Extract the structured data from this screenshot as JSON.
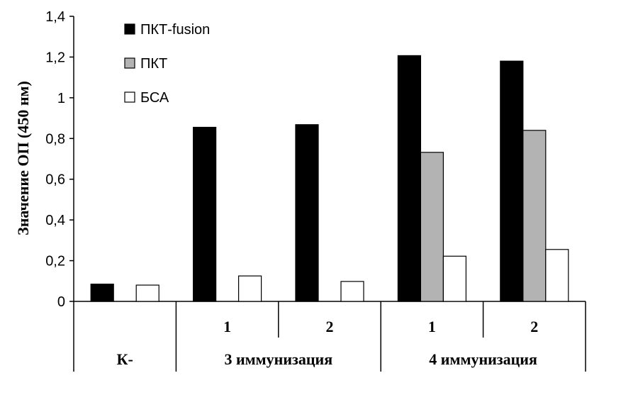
{
  "chart_data": {
    "type": "bar",
    "ylabel": "Значение ОП (450 нм)",
    "ylim": [
      0,
      1.4
    ],
    "yticks": [
      "0",
      "0,2",
      "0,4",
      "0,6",
      "0,8",
      "1",
      "1,2",
      "1,4"
    ],
    "ytick_values": [
      0,
      0.2,
      0.4,
      0.6,
      0.8,
      1.0,
      1.2,
      1.4
    ],
    "legend_placement": "top-left",
    "categories": [
      "К-",
      "3 иммунизация / 1",
      "3 иммунизация / 2",
      "4 иммунизация / 1",
      "4 иммунизация / 2"
    ],
    "sub_labels": [
      "",
      "1",
      "2",
      "1",
      "2"
    ],
    "group_labels": [
      {
        "label": "К-",
        "span": [
          0,
          0
        ]
      },
      {
        "label": "3 иммунизация",
        "span": [
          1,
          2
        ]
      },
      {
        "label": "4 иммунизация",
        "span": [
          3,
          4
        ]
      }
    ],
    "series": [
      {
        "name": "ПКТ-fusion",
        "color": "#000000",
        "values": [
          0.085,
          0.855,
          0.868,
          1.207,
          1.18
        ]
      },
      {
        "name": "ПКТ",
        "color": "#b3b3b3",
        "values": [
          null,
          null,
          null,
          0.732,
          0.84
        ]
      },
      {
        "name": "БСА",
        "color": "#ffffff",
        "values": [
          0.08,
          0.125,
          0.098,
          0.222,
          0.255
        ]
      }
    ]
  }
}
